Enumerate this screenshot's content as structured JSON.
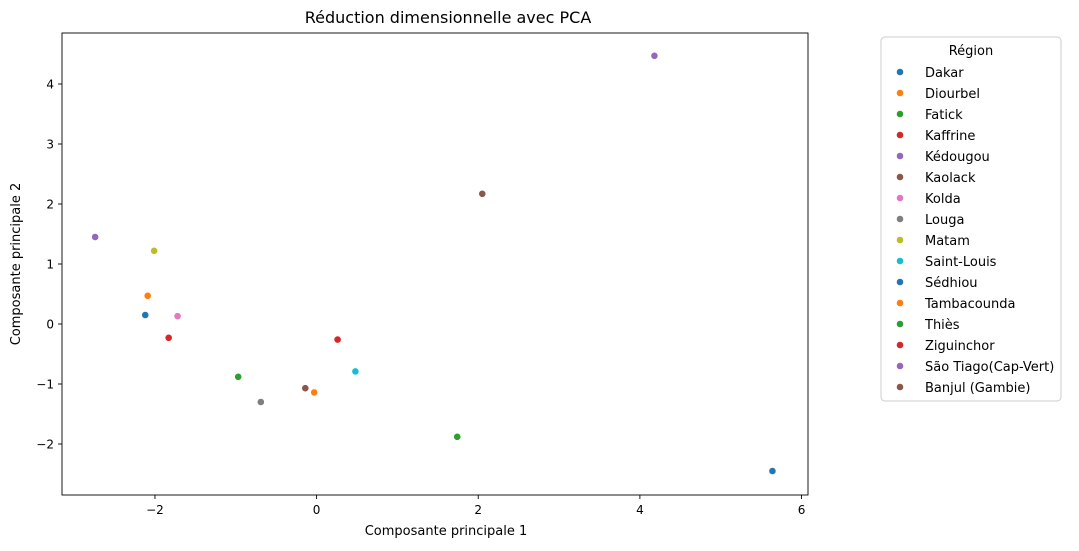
{
  "chart_data": {
    "type": "scatter",
    "title": "Réduction dimensionnelle avec PCA",
    "xlabel": "Composante principale 1",
    "ylabel": "Composante principale 2",
    "xlim": [
      -3.15,
      6.08
    ],
    "ylim": [
      -2.85,
      4.85
    ],
    "xticks": [
      -2,
      0,
      2,
      4,
      6
    ],
    "yticks": [
      -2,
      -1,
      0,
      1,
      2,
      3,
      4
    ],
    "xtick_labels": [
      "−2",
      "0",
      "2",
      "4",
      "6"
    ],
    "ytick_labels": [
      "−2",
      "−1",
      "0",
      "1",
      "2",
      "3",
      "4"
    ],
    "grid": false,
    "legend": {
      "title": "Région",
      "placement": "outside-right"
    },
    "series": [
      {
        "name": "Dakar",
        "color": "#1f77b4",
        "x": -2.12,
        "y": 0.15
      },
      {
        "name": "Diourbel",
        "color": "#ff7f0e",
        "x": -2.09,
        "y": 0.47
      },
      {
        "name": "Fatick",
        "color": "#2ca02c",
        "x": -0.97,
        "y": -0.88
      },
      {
        "name": "Kaffrine",
        "color": "#d62728",
        "x": -1.83,
        "y": -0.23
      },
      {
        "name": "Kédougou",
        "color": "#9467bd",
        "x": -2.74,
        "y": 1.45
      },
      {
        "name": "Kaolack",
        "color": "#8c564b",
        "x": -0.14,
        "y": -1.07
      },
      {
        "name": "Kolda",
        "color": "#e377c2",
        "x": -1.72,
        "y": 0.13
      },
      {
        "name": "Louga",
        "color": "#7f7f7f",
        "x": -0.69,
        "y": -1.3
      },
      {
        "name": "Matam",
        "color": "#bcbd22",
        "x": -2.01,
        "y": 1.22
      },
      {
        "name": "Saint-Louis",
        "color": "#17becf",
        "x": 0.48,
        "y": -0.79
      },
      {
        "name": "Sédhiou",
        "color": "#1f77b4",
        "x": 5.64,
        "y": -2.45
      },
      {
        "name": "Tambacounda",
        "color": "#ff7f0e",
        "x": -0.03,
        "y": -1.14
      },
      {
        "name": "Thiès",
        "color": "#2ca02c",
        "x": 1.74,
        "y": -1.88
      },
      {
        "name": "Ziguinchor",
        "color": "#d62728",
        "x": 0.26,
        "y": -0.26
      },
      {
        "name": "São Tiago(Cap-Vert)",
        "color": "#9467bd",
        "x": 4.18,
        "y": 4.47
      },
      {
        "name": "Banjul (Gambie)",
        "color": "#8c564b",
        "x": 2.05,
        "y": 2.17
      }
    ]
  }
}
